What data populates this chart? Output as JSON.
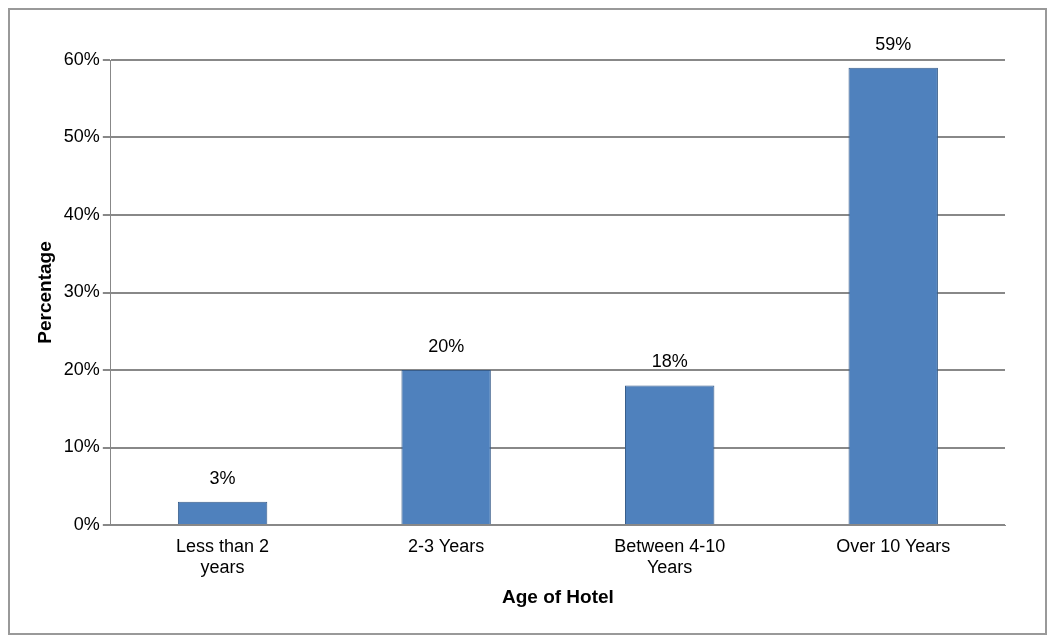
{
  "chart_data": {
    "type": "bar",
    "xlabel": "Age of Hotel",
    "ylabel": "Percentage",
    "categories": [
      "Less than 2 years",
      "2-3 Years",
      "Between 4-10 Years",
      "Over 10 Years"
    ],
    "values": [
      3,
      20,
      18,
      59
    ],
    "color": "#4f81bd",
    "value_labels": [
      "3%",
      "20%",
      "18%",
      "59%"
    ],
    "ylim": [
      0,
      60
    ],
    "yticks": [
      {
        "value": 0,
        "label": "0%"
      },
      {
        "value": 10,
        "label": "10%"
      },
      {
        "value": 20,
        "label": "20%"
      },
      {
        "value": 30,
        "label": "30%"
      },
      {
        "value": 40,
        "label": "40%"
      },
      {
        "value": 50,
        "label": "50%"
      },
      {
        "value": 60,
        "label": "60%"
      }
    ],
    "grid": "y",
    "legend": false
  }
}
